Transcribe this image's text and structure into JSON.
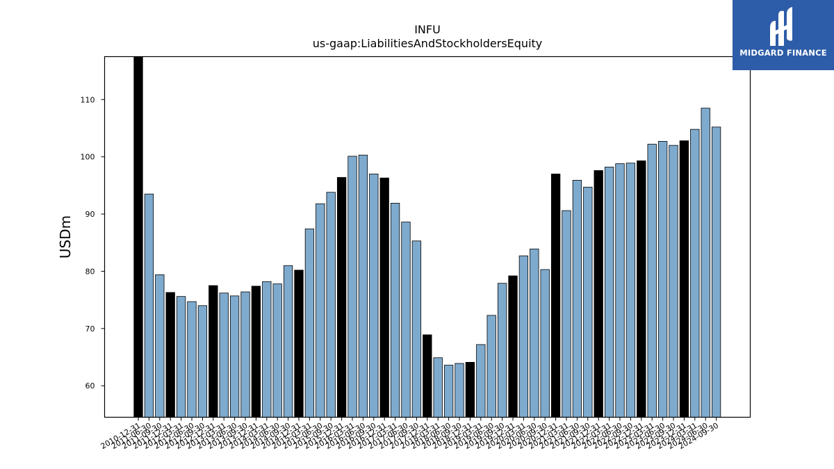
{
  "chart_data": {
    "type": "bar",
    "title": "INFU",
    "subtitle": "us-gaap:LiabilitiesAndStockholdersEquity",
    "xlabel": "",
    "ylabel": "USDm",
    "ylim": [
      54.5,
      117.5
    ],
    "yticks": [
      60,
      70,
      80,
      90,
      100,
      110
    ],
    "grid": false,
    "colors": {
      "quarter": "#7eaacd",
      "year_end": "#000000",
      "edge": "#000000"
    },
    "categories": [
      "2010-12-31",
      "2011-06-30",
      "2011-09-30",
      "2011-12-31",
      "2012-03-31",
      "2012-06-30",
      "2012-09-30",
      "2012-12-31",
      "2013-03-31",
      "2013-06-30",
      "2013-09-30",
      "2013-12-31",
      "2014-03-31",
      "2014-06-30",
      "2014-09-30",
      "2014-12-31",
      "2015-03-31",
      "2015-06-30",
      "2015-09-30",
      "2015-12-31",
      "2016-03-31",
      "2016-06-30",
      "2016-09-30",
      "2016-12-31",
      "2017-03-31",
      "2017-06-30",
      "2017-09-30",
      "2017-12-31",
      "2018-03-31",
      "2018-06-30",
      "2018-09-30",
      "2018-12-31",
      "2019-03-31",
      "2019-06-30",
      "2019-09-30",
      "2019-12-31",
      "2020-03-31",
      "2020-06-30",
      "2020-09-30",
      "2020-12-31",
      "2021-03-31",
      "2021-06-30",
      "2021-09-30",
      "2021-12-31",
      "2022-03-31",
      "2022-06-30",
      "2022-09-30",
      "2022-12-31",
      "2023-03-31",
      "2023-06-30",
      "2023-09-30",
      "2023-12-31",
      "2024-03-31",
      "2024-06-30",
      "2024-09-30"
    ],
    "values": [
      117.5,
      93.5,
      79.4,
      76.3,
      75.6,
      74.7,
      74.0,
      77.5,
      76.2,
      75.7,
      76.4,
      77.4,
      78.2,
      77.8,
      81.0,
      80.2,
      87.4,
      91.8,
      93.8,
      96.4,
      100.1,
      100.3,
      97.0,
      96.3,
      91.9,
      88.6,
      85.3,
      68.9,
      64.9,
      63.6,
      63.9,
      64.1,
      67.2,
      72.3,
      77.9,
      79.2,
      82.7,
      83.9,
      80.3,
      97.0,
      90.6,
      95.9,
      94.7,
      97.6,
      98.2,
      98.8,
      98.9,
      99.3,
      102.2,
      102.7,
      102.0,
      102.8,
      104.8,
      108.5,
      105.2
    ],
    "year_end": [
      true,
      false,
      false,
      true,
      false,
      false,
      false,
      true,
      false,
      false,
      false,
      true,
      false,
      false,
      false,
      true,
      false,
      false,
      false,
      true,
      false,
      false,
      false,
      true,
      false,
      false,
      false,
      true,
      false,
      false,
      false,
      true,
      false,
      false,
      false,
      true,
      false,
      false,
      false,
      true,
      false,
      false,
      false,
      true,
      false,
      false,
      false,
      true,
      false,
      false,
      false,
      true,
      false,
      false,
      false
    ]
  },
  "logo": {
    "text": "MIDGARD FINANCE",
    "bg": "#2d5ca8"
  }
}
